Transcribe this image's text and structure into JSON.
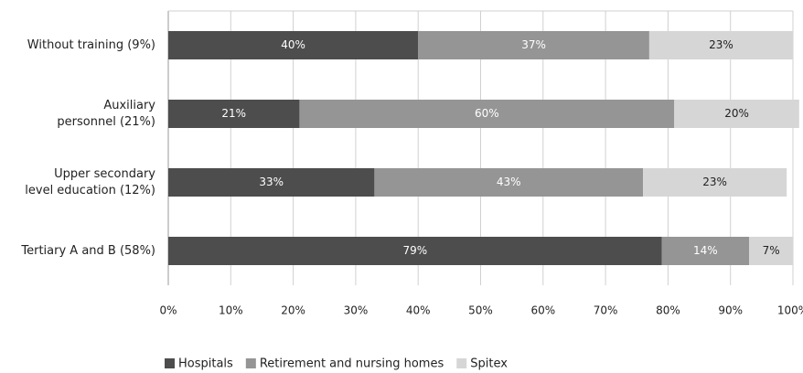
{
  "chart_data": {
    "type": "stacked-barh",
    "categories": [
      "Without training (9%)",
      "Auxiliary\npersonnel (21%)",
      "Upper secondary\nlevel education (12%)",
      "Tertiary A and B (58%)"
    ],
    "series": [
      {
        "name": "Hospitals",
        "color": "#4d4d4d",
        "values": [
          40,
          21,
          33,
          79
        ],
        "value_labels": [
          "40%",
          "21%",
          "33%",
          "79%"
        ]
      },
      {
        "name": "Retirement and nursing homes",
        "color": "#959595",
        "values": [
          37,
          60,
          43,
          14
        ],
        "value_labels": [
          "37%",
          "60%",
          "43%",
          "14%"
        ]
      },
      {
        "name": "Spitex",
        "color": "#d6d6d6",
        "values": [
          23,
          20,
          23,
          7
        ],
        "value_labels": [
          "23%",
          "20%",
          "23%",
          "7%"
        ]
      }
    ],
    "xlim": [
      0,
      100
    ],
    "xticks": [
      {
        "value": 0,
        "label": "0%"
      },
      {
        "value": 10,
        "label": "10%"
      },
      {
        "value": 20,
        "label": "20%"
      },
      {
        "value": 30,
        "label": "30%"
      },
      {
        "value": 40,
        "label": "40%"
      },
      {
        "value": 50,
        "label": "50%"
      },
      {
        "value": 60,
        "label": "60%"
      },
      {
        "value": 70,
        "label": "70%"
      },
      {
        "value": 80,
        "label": "80%"
      },
      {
        "value": 90,
        "label": "90%"
      },
      {
        "value": 100,
        "label": "100%"
      }
    ],
    "grid": true,
    "legend": "bottom"
  }
}
